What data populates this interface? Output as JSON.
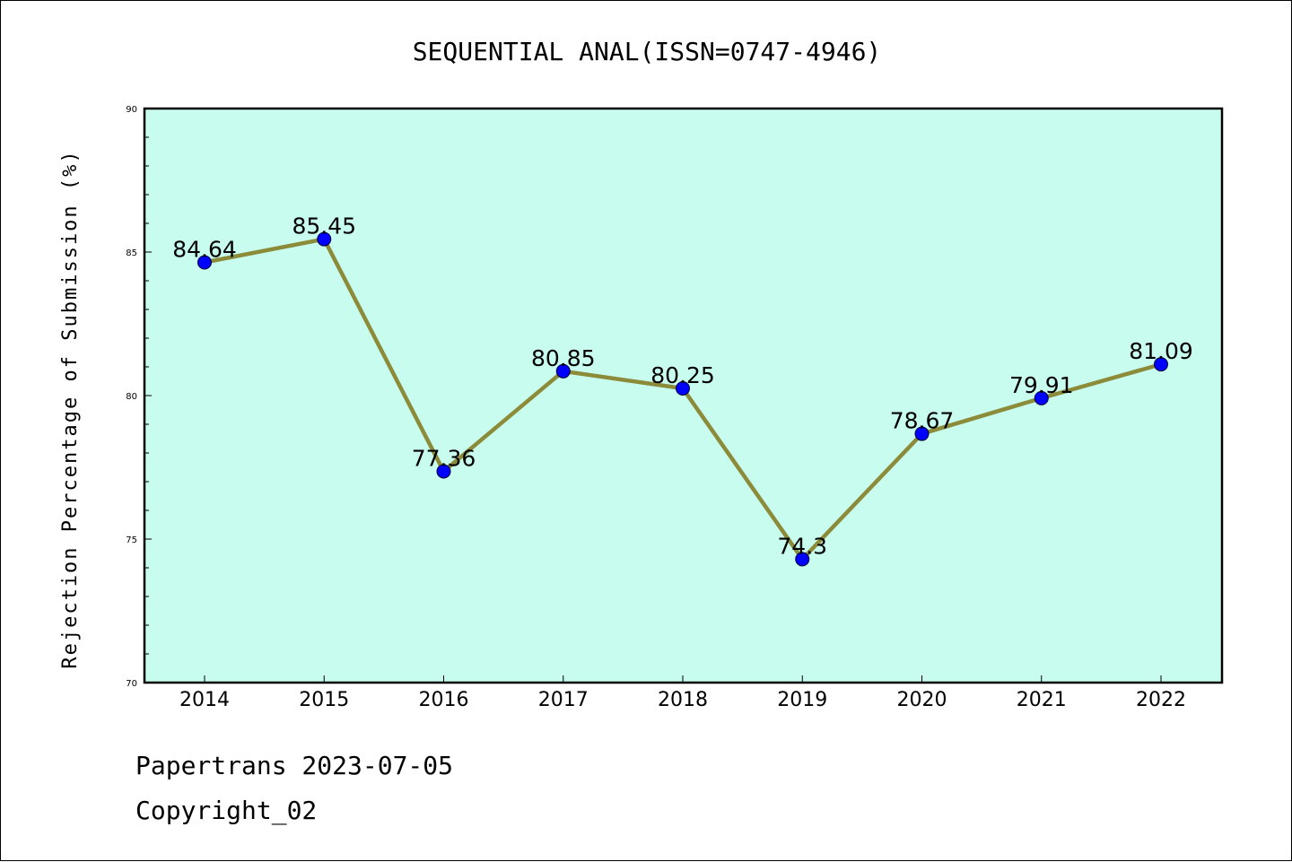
{
  "chart_data": {
    "type": "line",
    "title": "SEQUENTIAL ANAL(ISSN=0747-4946)",
    "xlabel": "",
    "ylabel": "Rejection Percentage of Submission (%)",
    "categories": [
      "2014",
      "2015",
      "2016",
      "2017",
      "2018",
      "2019",
      "2020",
      "2021",
      "2022"
    ],
    "series": [
      {
        "values": [
          84.64,
          85.45,
          77.36,
          80.85,
          80.25,
          74.3,
          78.67,
          79.91,
          81.09
        ],
        "labels": [
          "84.64",
          "85.45",
          "77.36",
          "80.85",
          "80.25",
          "74.3",
          "78.67",
          "79.91",
          "81.09"
        ],
        "line_color": "#8B8B3A",
        "marker_color": "#0000FF"
      }
    ],
    "ylim": [
      70,
      90
    ],
    "yticks": [
      "70",
      "75",
      "80",
      "85",
      "90"
    ],
    "background_color": "#C8FCEE",
    "grid": false
  },
  "footer": {
    "line1": "Papertrans 2023-07-05",
    "line2": "Copyright_02"
  }
}
